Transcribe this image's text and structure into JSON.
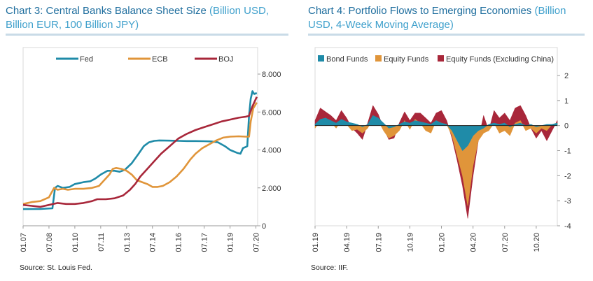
{
  "colors": {
    "title": "#1f6e9e",
    "subtitle": "#3fa0cc",
    "fed": "#1f8ba8",
    "ecb": "#e0953a",
    "boj": "#a8273a",
    "bond": "#1f8ba8",
    "equity": "#e0953a",
    "equity_ex_china": "#a8273a"
  },
  "left": {
    "title_main": "Chart 3: Central Banks Balance Sheet Size",
    "title_sub": " (Billion USD, Billion EUR, 100 Billion JPY)",
    "source": "Source: St. Louis Fed."
  },
  "right": {
    "title_main": "Chart 4: Portfolio Flows to Emerging Economies",
    "title_sub": " (Billion USD, 4-Week Moving Average)",
    "source": "Source: IIF."
  },
  "chart_data": [
    {
      "type": "line",
      "title": "Chart 3: Central Banks Balance Sheet Size (Billion USD, Billion EUR, 100 Billion JPY)",
      "x_tick_labels": [
        "01.07",
        "07.08",
        "01.10",
        "07.11",
        "01.13",
        "07.14",
        "01.16",
        "07.17",
        "01.19",
        "07.20"
      ],
      "y_tick_labels": [
        "0",
        "2.000",
        "4.000",
        "6.000",
        "8.000"
      ],
      "ylim": [
        0,
        8000
      ],
      "y_axis_side": "right",
      "legend_position": "top",
      "grid": false,
      "x_unit": "year",
      "series": [
        {
          "name": "Fed",
          "x": [
            2007.0,
            2008.0,
            2008.7,
            2008.85,
            2009.0,
            2009.3,
            2009.7,
            2010.0,
            2010.5,
            2010.9,
            2011.2,
            2011.5,
            2011.9,
            2012.3,
            2012.6,
            2012.9,
            2013.3,
            2013.7,
            2014.0,
            2014.3,
            2014.6,
            2014.9,
            2015.5,
            2016.0,
            2016.5,
            2017.0,
            2017.5,
            2017.9,
            2018.3,
            2018.7,
            2019.0,
            2019.4,
            2019.6,
            2019.75,
            2019.9,
            2020.0,
            2020.1,
            2020.2,
            2020.3,
            2020.4,
            2020.55
          ],
          "values": [
            880,
            890,
            920,
            2000,
            2100,
            2000,
            2050,
            2200,
            2300,
            2350,
            2500,
            2700,
            2900,
            2900,
            2850,
            2950,
            3300,
            3800,
            4200,
            4400,
            4480,
            4500,
            4490,
            4480,
            4470,
            4470,
            4460,
            4450,
            4400,
            4200,
            4000,
            3850,
            3800,
            4100,
            4150,
            4200,
            5800,
            6700,
            7100,
            6950,
            7000
          ]
        },
        {
          "name": "ECB",
          "x": [
            2007.0,
            2007.5,
            2008.0,
            2008.5,
            2008.8,
            2009.0,
            2009.3,
            2009.6,
            2010.0,
            2010.5,
            2011.0,
            2011.4,
            2011.7,
            2012.0,
            2012.2,
            2012.4,
            2012.7,
            2013.0,
            2013.3,
            2013.6,
            2013.9,
            2014.2,
            2014.5,
            2014.8,
            2015.1,
            2015.5,
            2015.9,
            2016.3,
            2016.7,
            2017.0,
            2017.4,
            2017.8,
            2018.2,
            2018.6,
            2019.0,
            2019.5,
            2019.9,
            2020.1,
            2020.2,
            2020.35,
            2020.55
          ],
          "values": [
            1150,
            1250,
            1300,
            1500,
            2000,
            1900,
            1950,
            1900,
            1950,
            1950,
            2000,
            2100,
            2400,
            2700,
            3000,
            3050,
            3000,
            2900,
            2700,
            2400,
            2300,
            2200,
            2050,
            2050,
            2100,
            2300,
            2600,
            3000,
            3500,
            3800,
            4100,
            4300,
            4500,
            4650,
            4700,
            4720,
            4700,
            4700,
            5500,
            6200,
            6500
          ]
        },
        {
          "name": "BOJ",
          "x": [
            2007.0,
            2007.5,
            2008.0,
            2008.5,
            2009.0,
            2009.5,
            2010.0,
            2010.5,
            2011.0,
            2011.3,
            2011.8,
            2012.3,
            2012.8,
            2013.2,
            2013.5,
            2013.8,
            2014.2,
            2014.6,
            2015.0,
            2015.5,
            2016.0,
            2016.5,
            2017.0,
            2017.5,
            2018.0,
            2018.5,
            2019.0,
            2019.5,
            2019.9,
            2020.1,
            2020.3,
            2020.55
          ],
          "values": [
            1100,
            1050,
            1000,
            1100,
            1200,
            1150,
            1150,
            1200,
            1300,
            1400,
            1400,
            1450,
            1600,
            1900,
            2200,
            2600,
            3000,
            3400,
            3800,
            4200,
            4600,
            4850,
            5050,
            5200,
            5350,
            5500,
            5600,
            5700,
            5750,
            5800,
            6300,
            6800
          ]
        }
      ]
    },
    {
      "type": "area",
      "title": "Chart 4: Portfolio Flows to Emerging Economies (Billion USD, 4-Week Moving Average)",
      "x_tick_labels": [
        "01.19",
        "04.19",
        "07.19",
        "10.19",
        "01.20",
        "04.20",
        "07.20",
        "10.20"
      ],
      "y_tick_labels": [
        "-4",
        "-3",
        "-2",
        "-1",
        "0",
        "1",
        "2"
      ],
      "ylim": [
        -4,
        2
      ],
      "y_axis_side": "right",
      "legend_position": "top",
      "grid": false,
      "x_unit": "month (0 = Jan 2019)",
      "x": [
        0,
        0.5,
        1,
        1.5,
        2,
        2.5,
        3,
        3.5,
        4,
        4.5,
        5,
        5.5,
        6,
        6.5,
        7,
        7.5,
        8,
        8.5,
        9,
        9.5,
        10,
        10.5,
        11,
        11.5,
        12,
        12.5,
        13,
        13.5,
        14,
        14.5,
        15,
        15.5,
        16,
        16.5,
        17,
        17.5,
        18,
        18.5,
        19,
        19.5,
        20,
        20.5,
        21,
        21.5,
        22,
        22.5,
        23
      ],
      "series": [
        {
          "name": "Bond Funds",
          "values": [
            0.05,
            0.25,
            0.3,
            0.2,
            0.1,
            0.25,
            0.15,
            0.1,
            0.05,
            -0.05,
            0.05,
            0.4,
            0.3,
            0.1,
            -0.1,
            -0.05,
            0.05,
            0.15,
            0.1,
            0.2,
            0.15,
            0.1,
            0.05,
            0.2,
            0.1,
            0.05,
            -0.2,
            -0.6,
            -1.0,
            -0.8,
            -0.4,
            -0.2,
            -0.1,
            0.05,
            0.1,
            0.05,
            0.1,
            -0.05,
            0.05,
            0.1,
            0.0,
            0.05,
            -0.05,
            0.0,
            0.05,
            0.05,
            0.1
          ]
        },
        {
          "name": "Equity Funds",
          "values": [
            -0.1,
            0.2,
            0.3,
            0.15,
            -0.1,
            0.2,
            0.05,
            -0.2,
            -0.15,
            -0.3,
            -0.1,
            0.3,
            0.2,
            -0.2,
            -0.5,
            -0.4,
            -0.2,
            0.2,
            -0.15,
            0.25,
            0.1,
            -0.2,
            -0.3,
            0.2,
            0.1,
            0.05,
            -0.4,
            -1.2,
            -2.0,
            -3.2,
            -1.6,
            -0.6,
            -0.3,
            -0.2,
            0.1,
            -0.3,
            -0.2,
            -0.4,
            0.1,
            0.2,
            -0.2,
            -0.1,
            -0.3,
            -0.1,
            -0.2,
            0.05,
            0.1
          ]
        },
        {
          "name": "Equity Funds (Excluding China)",
          "values": [
            0.2,
            0.7,
            0.55,
            0.4,
            0.2,
            0.6,
            0.3,
            -0.1,
            -0.3,
            -0.55,
            0.1,
            0.8,
            0.45,
            -0.1,
            -0.55,
            -0.5,
            0.1,
            0.55,
            0.2,
            0.5,
            0.5,
            0.3,
            0.1,
            0.5,
            0.6,
            0.2,
            -0.5,
            -1.4,
            -2.4,
            -3.7,
            -2.0,
            -0.6,
            0.4,
            -0.2,
            0.6,
            0.3,
            0.5,
            0.2,
            0.7,
            0.8,
            0.4,
            -0.1,
            -0.5,
            -0.2,
            -0.6,
            -0.2,
            0.2
          ]
        }
      ]
    }
  ]
}
